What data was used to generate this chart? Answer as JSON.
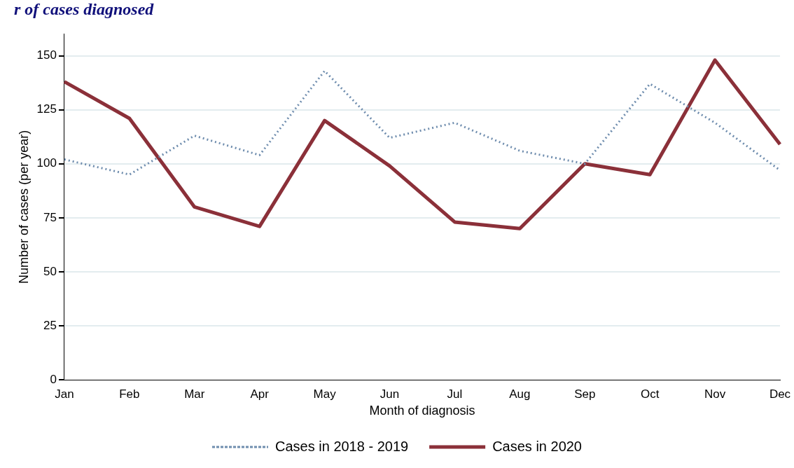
{
  "chart_data": {
    "type": "line",
    "title": "r of cases diagnosed",
    "xlabel": "Month of diagnosis",
    "ylabel": "Number of cases (per year)",
    "categories": [
      "Jan",
      "Feb",
      "Mar",
      "Apr",
      "May",
      "Jun",
      "Jul",
      "Aug",
      "Sep",
      "Oct",
      "Nov",
      "Dec"
    ],
    "series": [
      {
        "name": "Cases in 2018 - 2019",
        "color": "#6f8dae",
        "line_style": "dotted",
        "values": [
          102,
          95,
          113,
          104,
          143,
          112,
          119,
          106,
          100,
          137,
          119,
          97
        ]
      },
      {
        "name": "Cases in 2020",
        "color": "#8b3039",
        "line_style": "solid",
        "values": [
          138,
          121,
          80,
          71,
          120,
          99,
          73,
          70,
          100,
          95,
          148,
          109
        ]
      }
    ],
    "ylim": [
      0,
      160
    ],
    "yticks": [
      0,
      25,
      50,
      75,
      100,
      125,
      150
    ],
    "grid": "y",
    "legend": "bottom",
    "marker": "none"
  }
}
